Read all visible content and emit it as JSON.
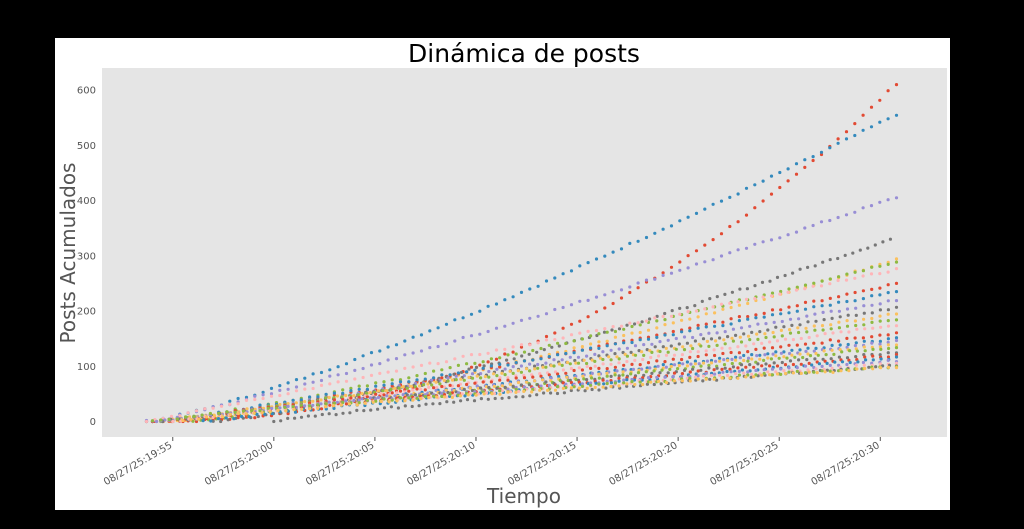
{
  "chart_data": {
    "type": "scatter",
    "title": "Dinámica de posts",
    "xlabel": "Tiempo",
    "ylabel": "Posts Acumulados",
    "x_ticks": [
      "08/27/25:19:55",
      "08/27/25:20:00",
      "08/27/25:20:05",
      "08/27/25:20:10",
      "08/27/25:20:15",
      "08/27/25:20:20",
      "08/27/25:20:25",
      "08/27/25:20:30"
    ],
    "x_tick_minutes": [
      0,
      5,
      10,
      15,
      20,
      25,
      30,
      35
    ],
    "y_ticks": [
      0,
      100,
      200,
      300,
      400,
      500,
      600
    ],
    "xlim_minutes": [
      -3.5,
      38.3
    ],
    "ylim": [
      -28,
      640
    ],
    "grid": false,
    "background_color": "#e5e5e5",
    "series_note": "many unlabeled series, cumulative posts over time",
    "series": [
      {
        "color": "#e24a33",
        "start": -1.3,
        "end": 35.8,
        "final": 612,
        "shape": 2.2
      },
      {
        "color": "#348abd",
        "start": -1.3,
        "end": 35.8,
        "final": 556,
        "shape": 1.25
      },
      {
        "color": "#988ed5",
        "start": -1.3,
        "end": 35.8,
        "final": 406,
        "shape": 1.15
      },
      {
        "color": "#777777",
        "start": 2.0,
        "end": 35.5,
        "final": 330,
        "shape": 1.3
      },
      {
        "color": "#fbc15e",
        "start": -1.0,
        "end": 35.8,
        "final": 293,
        "shape": 1.4
      },
      {
        "color": "#8eba42",
        "start": -1.0,
        "end": 35.8,
        "final": 290,
        "shape": 1.2
      },
      {
        "color": "#ffb5b8",
        "start": -1.3,
        "end": 35.8,
        "final": 275,
        "shape": 1.0
      },
      {
        "color": "#e24a33",
        "start": -1.0,
        "end": 35.8,
        "final": 250,
        "shape": 1.2
      },
      {
        "color": "#348abd",
        "start": -1.0,
        "end": 35.8,
        "final": 235,
        "shape": 1.1
      },
      {
        "color": "#988ed5",
        "start": -0.5,
        "end": 35.8,
        "final": 220,
        "shape": 1.1
      },
      {
        "color": "#777777",
        "start": 0.0,
        "end": 35.8,
        "final": 205,
        "shape": 1.05
      },
      {
        "color": "#fbc15e",
        "start": -0.8,
        "end": 35.8,
        "final": 195,
        "shape": 1.05
      },
      {
        "color": "#8eba42",
        "start": -0.5,
        "end": 35.8,
        "final": 185,
        "shape": 1.0
      },
      {
        "color": "#ffb5b8",
        "start": 0.5,
        "end": 35.8,
        "final": 175,
        "shape": 1.0
      },
      {
        "color": "#e24a33",
        "start": -1.0,
        "end": 35.8,
        "final": 160,
        "shape": 1.0
      },
      {
        "color": "#348abd",
        "start": 0.0,
        "end": 35.8,
        "final": 150,
        "shape": 1.0
      },
      {
        "color": "#988ed5",
        "start": -0.8,
        "end": 35.8,
        "final": 145,
        "shape": 1.0
      },
      {
        "color": "#fbc15e",
        "start": 0.0,
        "end": 35.8,
        "final": 140,
        "shape": 0.95
      },
      {
        "color": "#8eba42",
        "start": 1.0,
        "end": 35.8,
        "final": 135,
        "shape": 0.95
      },
      {
        "color": "#777777",
        "start": -0.5,
        "end": 35.8,
        "final": 125,
        "shape": 0.9
      },
      {
        "color": "#e24a33",
        "start": 0.5,
        "end": 35.8,
        "final": 120,
        "shape": 0.9
      },
      {
        "color": "#348abd",
        "start": 1.5,
        "end": 35.8,
        "final": 115,
        "shape": 0.9
      },
      {
        "color": "#988ed5",
        "start": -1.0,
        "end": 35.8,
        "final": 110,
        "shape": 0.85
      },
      {
        "color": "#ffb5b8",
        "start": 0.0,
        "end": 35.8,
        "final": 105,
        "shape": 0.85
      },
      {
        "color": "#777777",
        "start": 5.0,
        "end": 35.8,
        "final": 102,
        "shape": 0.85
      },
      {
        "color": "#8eba42",
        "start": -1.0,
        "end": 35.8,
        "final": 100,
        "shape": 0.8
      },
      {
        "color": "#fbc15e",
        "start": 0.5,
        "end": 35.8,
        "final": 98,
        "shape": 0.8
      }
    ]
  }
}
